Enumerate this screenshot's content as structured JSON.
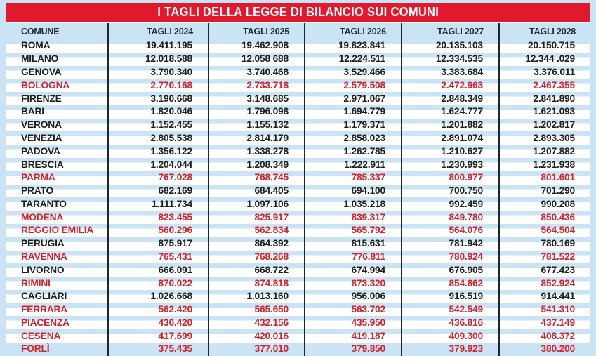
{
  "banner": {
    "title": "I TAGLI DELLA LEGGE DI BILANCIO SUI COMUNI"
  },
  "colors": {
    "banner_red": "#e2182d",
    "highlight_red": "#d0232d",
    "text_dark": "#1e1e1c",
    "stripe_blue": "#cbe4f5",
    "separator_dark": "#20242e"
  },
  "chart_data": {
    "type": "table",
    "title": "I TAGLI DELLA LEGGE DI BILANCIO SUI COMUNI",
    "columns": [
      "COMUNE",
      "TAGLI 2024",
      "TAGLI 2025",
      "TAGLI 2026",
      "TAGLI 2027",
      "TAGLI 2028"
    ],
    "rows": [
      {
        "comune": "ROMA",
        "values": [
          "19.411.195",
          "19.462.908",
          "19.823.841",
          "20.135.103",
          "20.150.715"
        ],
        "highlight": false
      },
      {
        "comune": "MILANO",
        "values": [
          "12.018.588",
          "12.058 688",
          "12.224.511",
          "12.334.535",
          "12.344 .029"
        ],
        "highlight": false
      },
      {
        "comune": "GENOVA",
        "values": [
          "3.790.340",
          "3.740.468",
          "3.529.466",
          "3.383.684",
          "3.376.011"
        ],
        "highlight": false
      },
      {
        "comune": "BOLOGNA",
        "values": [
          "2.770.168",
          "2.733.718",
          "2.579.508",
          "2.472.963",
          "2.467.355"
        ],
        "highlight": true
      },
      {
        "comune": "FIRENZE",
        "values": [
          "3.190.668",
          "3.148.685",
          "2.971.067",
          "2.848.349",
          "2.841.890"
        ],
        "highlight": false
      },
      {
        "comune": "BARI",
        "values": [
          "1.820.046",
          "1.796.098",
          "1.694.779",
          "1.624.777",
          "1.621.093"
        ],
        "highlight": false
      },
      {
        "comune": "VERONA",
        "values": [
          "1.152.455",
          "1.155.132",
          "1.179.371",
          "1.201.882",
          "1.202.817"
        ],
        "highlight": false
      },
      {
        "comune": "VENEZIA",
        "values": [
          "2.805.538",
          "2.814.179",
          "2.858.023",
          "2.891.074",
          "2.893.305"
        ],
        "highlight": false
      },
      {
        "comune": "PADOVA",
        "values": [
          "1.356.122",
          "1.338.278",
          "1.262.785",
          "1.210.627",
          "1.207.882"
        ],
        "highlight": false
      },
      {
        "comune": "BRESCIA",
        "values": [
          "1.204.044",
          "1.208.349",
          "1.222.911",
          "1.230.993",
          "1.231.938"
        ],
        "highlight": false
      },
      {
        "comune": "PARMA",
        "values": [
          "767.028",
          "768.745",
          "785.337",
          "800.977",
          "801.601"
        ],
        "highlight": true
      },
      {
        "comune": "PRATO",
        "values": [
          "682.169",
          "684.405",
          "694.100",
          "700.750",
          "701.290"
        ],
        "highlight": false
      },
      {
        "comune": "TARANTO",
        "values": [
          "1.111.734",
          "1.097.106",
          "1.035.218",
          "992.459",
          "990.208"
        ],
        "highlight": false
      },
      {
        "comune": "MODENA",
        "values": [
          "823.455",
          "825.917",
          "839.317",
          "849.780",
          "850.436"
        ],
        "highlight": true
      },
      {
        "comune": "REGGIO EMILIA",
        "values": [
          "560.296",
          "562.834",
          "565.792",
          "564.076",
          "564.504"
        ],
        "highlight": true
      },
      {
        "comune": "PERUGIA",
        "values": [
          "875.917",
          "864.392",
          "815.631",
          "781.942",
          "780.169"
        ],
        "highlight": false
      },
      {
        "comune": "RAVENNA",
        "values": [
          "765.431",
          "768.268",
          "776.811",
          "780.924",
          "781.522"
        ],
        "highlight": true
      },
      {
        "comune": "LIVORNO",
        "values": [
          "666.091",
          "668.722",
          "674.994",
          "676.905",
          "677.423"
        ],
        "highlight": false
      },
      {
        "comune": "RIMINI",
        "values": [
          "870.022",
          "874.818",
          "873.320",
          "854.862",
          "852.924"
        ],
        "highlight": true
      },
      {
        "comune": "CAGLIARI",
        "values": [
          "1.026.668",
          "1.013.160",
          "956.006",
          "916.519",
          "914.441"
        ],
        "highlight": false
      },
      {
        "comune": "FERRARA",
        "values": [
          "562.420",
          "565.650",
          "563.702",
          "542.549",
          "541.310"
        ],
        "highlight": true
      },
      {
        "comune": "PIACENZA",
        "values": [
          "430.420",
          "432.156",
          "435.950",
          "436.816",
          "437.149"
        ],
        "highlight": true
      },
      {
        "comune": "CESENA",
        "values": [
          "417.699",
          "420.016",
          "419.187",
          "409.300",
          "408.372"
        ],
        "highlight": true
      },
      {
        "comune": "FORLÌ",
        "values": [
          "375.435",
          "377.010",
          "379.850",
          "379.923",
          "380.200"
        ],
        "highlight": true
      }
    ]
  }
}
